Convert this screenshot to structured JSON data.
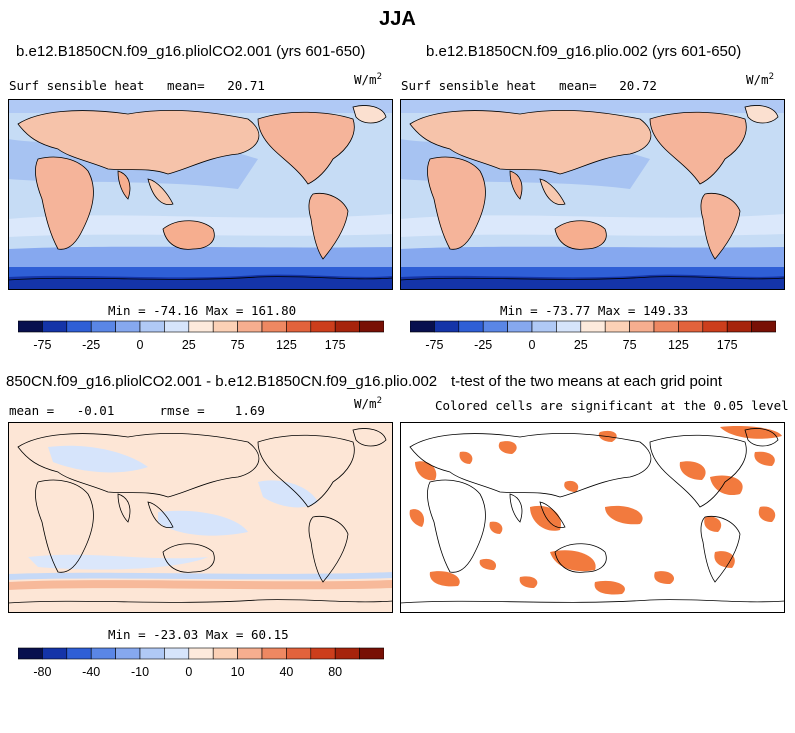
{
  "figure": {
    "title": "JJA",
    "panels": [
      {
        "case_title": "b.e12.B1850CN.f09_g16.pliolCO2.001 (yrs 601-650)",
        "variable_label": "Surf sensible heat",
        "mean_label": "mean=",
        "mean_value": "20.71",
        "units_base": "W/m",
        "units_exp": "2",
        "stats": "Min = -74.16 Max = 161.80"
      },
      {
        "case_title": "b.e12.B1850CN.f09_g16.plio.002 (yrs 601-650)",
        "variable_label": "Surf sensible heat",
        "mean_label": "mean=",
        "mean_value": "20.72",
        "units_base": "W/m",
        "units_exp": "2",
        "stats": "Min = -73.77 Max = 149.33"
      },
      {
        "case_title": "850CN.f09_g16.pliolCO2.001 - b.e12.B1850CN.f09_g16.plio.002",
        "mean_label": "mean =",
        "mean_value": "-0.01",
        "rmse_label": "rmse =",
        "rmse_value": "1.69",
        "units_base": "W/m",
        "units_exp": "2",
        "stats": "Min = -23.03 Max = 60.15"
      },
      {
        "case_title": "t-test of the two means at each grid point",
        "subtitle": "Colored cells are significant at the 0.05 level"
      }
    ],
    "colors": {
      "ocean_cold": "#bcd6f2",
      "ocean_warm": "#fde0cd",
      "land_warm": "#f5b49a",
      "ice": "#2a62d9",
      "significant": "#f27a3e",
      "coast": "#000000"
    },
    "palette": [
      "#08104e",
      "#1434a8",
      "#2f5fd6",
      "#5a86e6",
      "#86a8ef",
      "#b0c9f5",
      "#d6e4fb",
      "#fdeadc",
      "#fcd1b6",
      "#f6ae8f",
      "#ee8862",
      "#e2633c",
      "#cc3e1c",
      "#a6240c",
      "#781005"
    ]
  },
  "chart_data": [
    {
      "type": "heatmap",
      "title": "b.e12.B1850CN.f09_g16.pliolCO2.001 (yrs 601-650)",
      "variable": "Surf sensible heat",
      "season": "JJA",
      "units": "W/m^2",
      "mean": 20.71,
      "min": -74.16,
      "max": 161.8,
      "colorbar_ticks": [
        "-75",
        "-25",
        "0",
        "25",
        "75",
        "125",
        "175"
      ],
      "colorbar_levels": [
        -100,
        -75,
        -50,
        -25,
        -10,
        0,
        10,
        25,
        50,
        75,
        100,
        125,
        150,
        175
      ]
    },
    {
      "type": "heatmap",
      "title": "b.e12.B1850CN.f09_g16.plio.002 (yrs 601-650)",
      "variable": "Surf sensible heat",
      "season": "JJA",
      "units": "W/m^2",
      "mean": 20.72,
      "min": -73.77,
      "max": 149.33,
      "colorbar_ticks": [
        "-75",
        "-25",
        "0",
        "25",
        "75",
        "125",
        "175"
      ],
      "colorbar_levels": [
        -100,
        -75,
        -50,
        -25,
        -10,
        0,
        10,
        25,
        50,
        75,
        100,
        125,
        150,
        175
      ]
    },
    {
      "type": "heatmap",
      "title": "850CN.f09_g16.pliolCO2.001 - b.e12.B1850CN.f09_g16.plio.002",
      "units": "W/m^2",
      "mean": -0.01,
      "rmse": 1.69,
      "min": -23.03,
      "max": 60.15,
      "colorbar_ticks": [
        "-80",
        "-40",
        "-10",
        "0",
        "10",
        "40",
        "80"
      ],
      "colorbar_levels": [
        -100,
        -80,
        -60,
        -40,
        -20,
        -10,
        -5,
        0,
        5,
        10,
        20,
        40,
        60,
        80,
        100
      ]
    },
    {
      "type": "heatmap",
      "title": "t-test of the two means at each grid point",
      "subtitle": "Colored cells are significant at the 0.05 level",
      "significance_level": 0.05
    }
  ]
}
